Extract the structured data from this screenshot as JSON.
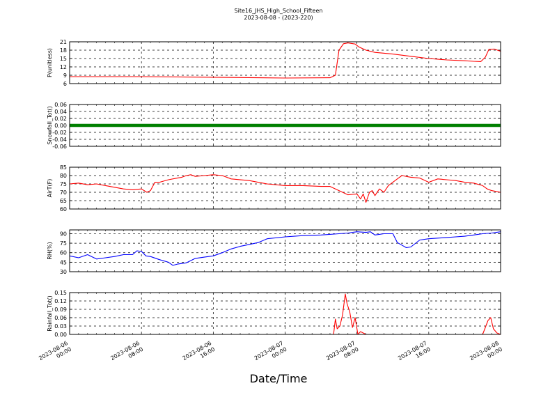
{
  "figure": {
    "title": "Site16_JHS_High_School_Fifteen",
    "subtitle": "2023-08-08 - (2023-220)",
    "xlabel": "Date/Time",
    "x_ticks": [
      {
        "h": 0,
        "label": [
          "2023-08-06",
          "00:00"
        ]
      },
      {
        "h": 8,
        "label": [
          "2023-08-06",
          "08:00"
        ]
      },
      {
        "h": 16,
        "label": [
          "2023-08-06",
          "16:00"
        ]
      },
      {
        "h": 24,
        "label": [
          "2023-08-07",
          "00:00"
        ]
      },
      {
        "h": 32,
        "label": [
          "2023-08-07",
          "08:00"
        ]
      },
      {
        "h": 40,
        "label": [
          "2023-08-07",
          "16:00"
        ]
      },
      {
        "h": 48,
        "label": [
          "2023-08-08",
          "00:00"
        ]
      }
    ]
  },
  "chart_data": [
    {
      "type": "line",
      "ylabel": "P(unitless)",
      "ylim": [
        6,
        21
      ],
      "yticks": [
        6,
        9,
        12,
        15,
        18,
        21
      ],
      "grid": true,
      "color": "#ff0000",
      "x_unit": "hours since 2023-08-06 00:00",
      "x": [
        0,
        8,
        15,
        24,
        29,
        29.6,
        30,
        30.5,
        31,
        31.8,
        32.2,
        33,
        34,
        36,
        38,
        40,
        42,
        44,
        45,
        45.8,
        46.3,
        46.7,
        47.3,
        48
      ],
      "y": [
        8.5,
        8.5,
        8.3,
        8.0,
        8.1,
        9.0,
        18,
        20.3,
        20.6,
        20.2,
        19.2,
        18,
        17.2,
        16.6,
        15.8,
        15.0,
        14.5,
        14.2,
        14.0,
        13.9,
        15.5,
        18.3,
        18.4,
        17.6
      ]
    },
    {
      "type": "scatter",
      "ylabel": "Snowfall_Tot()",
      "ylim": [
        -0.06,
        0.06
      ],
      "yticks": [
        -0.06,
        -0.04,
        -0.02,
        0.0,
        0.02,
        0.04,
        0.06
      ],
      "grid": true,
      "color": "#008000",
      "x_unit": "hours since 2023-08-06 00:00",
      "x": [
        0,
        48
      ],
      "y": [
        0,
        0
      ]
    },
    {
      "type": "line",
      "ylabel": "AirT(F)",
      "ylim": [
        60,
        85
      ],
      "yticks": [
        60,
        65,
        70,
        75,
        80,
        85
      ],
      "grid": true,
      "color": "#ff0000",
      "x_unit": "hours since 2023-08-06 00:00",
      "x": [
        0,
        1,
        2,
        3,
        4,
        5,
        6,
        7,
        8,
        8.6,
        9,
        9.5,
        10,
        11,
        12,
        12.5,
        13,
        13.5,
        14,
        15,
        16,
        17,
        18,
        20,
        22,
        24,
        26,
        28,
        29,
        30,
        31,
        32,
        32.4,
        32.7,
        33,
        33.4,
        33.7,
        34,
        34.5,
        35,
        35.5,
        36,
        37,
        38,
        39,
        40,
        41,
        42,
        43,
        44,
        45,
        46,
        46.5,
        47,
        48
      ],
      "y": [
        75,
        75.5,
        74.5,
        75,
        74,
        73,
        72,
        71.5,
        72,
        70,
        71,
        76,
        76,
        77.5,
        78.5,
        79,
        80,
        80.5,
        79.5,
        80,
        80.5,
        80,
        78,
        77,
        75,
        74,
        74,
        73.5,
        73.5,
        71,
        68.5,
        69,
        66,
        69,
        64,
        70,
        71,
        68,
        72,
        70,
        74,
        76,
        80,
        79,
        78.5,
        76,
        78,
        77.5,
        77,
        76,
        75.5,
        74,
        72,
        71,
        70
      ]
    },
    {
      "type": "line",
      "ylabel": "RH(%)",
      "ylim": [
        30,
        96
      ],
      "yticks": [
        30,
        45,
        60,
        75,
        90
      ],
      "grid": true,
      "color": "#0000ff",
      "x_unit": "hours since 2023-08-06 00:00",
      "x": [
        0,
        1,
        2,
        3,
        4,
        5,
        6,
        7,
        7.5,
        8,
        8.5,
        9,
        10,
        11,
        11.5,
        12,
        13,
        14,
        15,
        16,
        17,
        18,
        19,
        20,
        21,
        22,
        24,
        26,
        28,
        30,
        31,
        32,
        33,
        33.5,
        34,
        35,
        36,
        36.5,
        37,
        37.5,
        38,
        39,
        40,
        41,
        42,
        43,
        44,
        45,
        46,
        47,
        48
      ],
      "y": [
        55,
        52,
        57,
        50,
        52,
        54,
        57,
        57,
        63,
        62,
        55,
        54,
        49,
        45,
        40,
        42,
        44,
        51,
        53,
        55,
        60,
        66,
        70,
        73,
        76,
        82,
        85,
        87,
        88,
        90,
        91,
        93,
        92,
        93,
        88,
        90,
        90,
        76,
        72,
        68,
        69,
        80,
        82,
        83,
        84,
        85,
        86,
        88,
        90,
        91,
        93
      ]
    },
    {
      "type": "line",
      "ylabel": "Rainfall_Tot()",
      "ylim": [
        0,
        0.15
      ],
      "yticks": [
        0.0,
        0.03,
        0.06,
        0.09,
        0.12,
        0.15
      ],
      "grid": true,
      "color": "#ff0000",
      "x_unit": "hours since 2023-08-06 00:00",
      "x": [
        0,
        29.4,
        29.6,
        29.8,
        30.1,
        30.4,
        30.7,
        30.9,
        31.2,
        31.5,
        31.8,
        32.1,
        32.4,
        33,
        46,
        46.3,
        46.6,
        46.9,
        47.2,
        47.6,
        48
      ],
      "y": [
        0,
        0,
        0.055,
        0.02,
        0.03,
        0.07,
        0.145,
        0.11,
        0.08,
        0.025,
        0.06,
        0.0,
        0.01,
        0,
        0,
        0.025,
        0.05,
        0.06,
        0.02,
        0.005,
        0
      ]
    }
  ]
}
